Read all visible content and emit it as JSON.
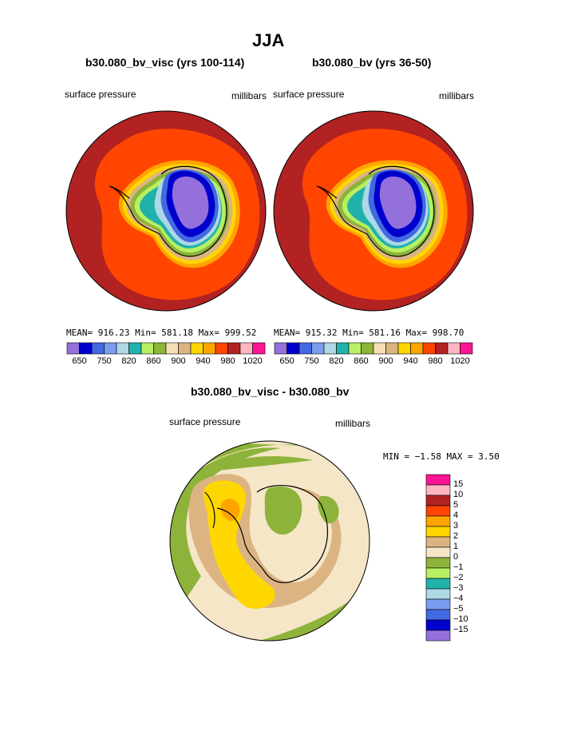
{
  "title": "JJA",
  "panels": [
    {
      "subtitle": "b30.080_bv_visc (yrs 100-114)",
      "left_label": "surface pressure",
      "right_label": "millibars",
      "stats": "MEAN= 916.23  Min= 581.18  Max= 999.52"
    },
    {
      "subtitle": "b30.080_bv (yrs 36-50)",
      "left_label": "surface pressure",
      "right_label": "millibars",
      "stats": "MEAN= 915.32  Min= 581.16  Max= 998.70"
    }
  ],
  "top_colorbar": {
    "colors": [
      "#9370db",
      "#0000cd",
      "#4169e1",
      "#7b9cf0",
      "#add8e6",
      "#20b2aa",
      "#b8f064",
      "#8db33a",
      "#f5deb3",
      "#dcb482",
      "#ffd700",
      "#ffa500",
      "#ff4500",
      "#b22222",
      "#ffb6c1",
      "#ff1493"
    ],
    "tick_labels": [
      "650",
      "750",
      "820",
      "860",
      "900",
      "940",
      "980",
      "1020"
    ]
  },
  "diff": {
    "subtitle": "b30.080_bv_visc - b30.080_bv",
    "left_label": "surface pressure",
    "right_label": "millibars",
    "min_max": "MIN =  −1.58 MAX =    3.50"
  },
  "diff_colorbar": {
    "colors": [
      "#ff1493",
      "#ffb6c1",
      "#b22222",
      "#ff4500",
      "#ffa500",
      "#ffd700",
      "#dcb482",
      "#f5e6c8",
      "#8db33a",
      "#b8f064",
      "#20b2aa",
      "#add8e6",
      "#7b9cf0",
      "#4169e1",
      "#0000cd",
      "#9370db"
    ],
    "tick_labels": [
      "15",
      "10",
      "5",
      "4",
      "3",
      "2",
      "1",
      "0",
      "−1",
      "−2",
      "−3",
      "−4",
      "−5",
      "−10",
      "−15"
    ]
  },
  "map_colors": {
    "outer": "#b22222",
    "ring": "#ff4500",
    "orange": "#ffa500",
    "yellow": "#ffd700",
    "tan": "#dcb482",
    "green": "#8db33a",
    "lime": "#b8f064",
    "teal": "#20b2aa",
    "lightblue": "#add8e6",
    "blue": "#4169e1",
    "darkblue": "#0000cd",
    "purple": "#9370db",
    "cream": "#f5e6c8"
  }
}
